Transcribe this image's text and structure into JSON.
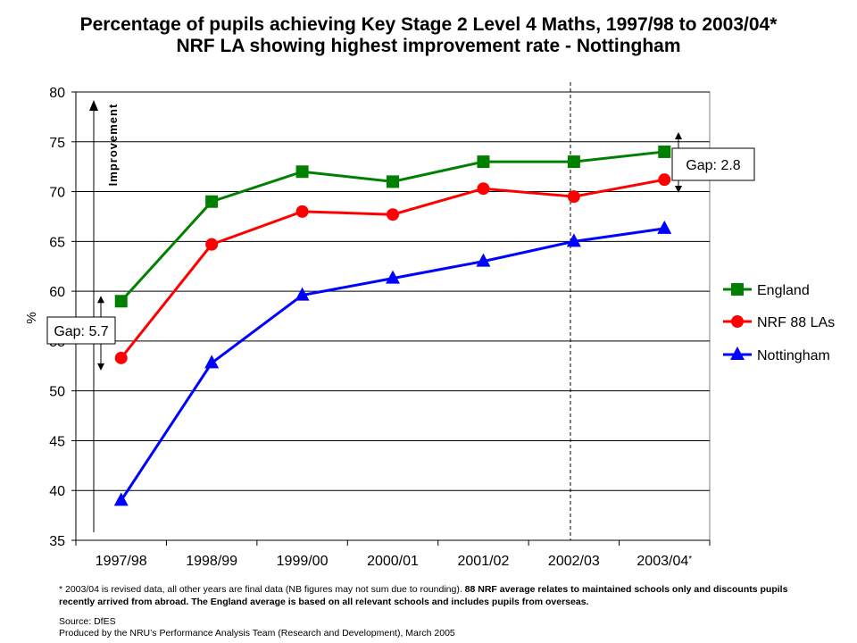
{
  "title": "Percentage of pupils achieving Key Stage 2 Level 4 Maths, 1997/98 to 2003/04*",
  "subtitle": "NRF LA showing highest improvement rate - Nottingham",
  "footnote_plain": "* 2003/04 is revised data, all other years are final data (NB figures may not sum due to rounding).",
  "footnote_bold": "88 NRF average relates to maintained schools only and discounts pupils recently arrived from abroad. The England average is based on all relevant schools and includes pupils from overseas.",
  "source": "Source: DfES",
  "produced_by": "Produced by the NRU’s Performance Analysis Team  (Research and Development), March 2005",
  "colors": {
    "england": "#008000",
    "nrf": "#ff0000",
    "nottingham": "#0000ff",
    "background": "#ffffff",
    "grid": "#000000"
  },
  "chart_data": {
    "type": "line",
    "title": "Percentage of pupils achieving Key Stage 2 Level 4 Maths, 1997/98 to 2003/04*",
    "subtitle": "NRF LA showing highest improvement rate - Nottingham",
    "categories": [
      "1997/98",
      "1998/99",
      "1999/00",
      "2000/01",
      "2001/02",
      "2002/03",
      "2003/04"
    ],
    "category_suffix_last": "*",
    "ylabel": "%",
    "ylim": [
      35,
      80
    ],
    "yticks": [
      35,
      40,
      45,
      50,
      55,
      60,
      65,
      70,
      75,
      80
    ],
    "grid": true,
    "legend_position": "right",
    "series": [
      {
        "name": "England",
        "marker": "square",
        "color": "#008000",
        "values": [
          59,
          69,
          72,
          71,
          73,
          73,
          74
        ]
      },
      {
        "name": "NRF 88 LAs",
        "marker": "circle",
        "color": "#ff0000",
        "values": [
          53.3,
          64.7,
          68,
          67.7,
          70.3,
          69.5,
          71.2
        ]
      },
      {
        "name": "Nottingham",
        "marker": "triangle",
        "color": "#0000ff",
        "values": [
          39,
          52.8,
          59.6,
          61.3,
          63,
          65,
          66.3
        ]
      }
    ],
    "annotations": {
      "improvement_label": "Improvement",
      "gap_start_label": "Gap: 5.7",
      "gap_end_label": "Gap: 2.8",
      "dashed_divider_between": [
        "2002/03",
        "2003/04"
      ]
    }
  }
}
